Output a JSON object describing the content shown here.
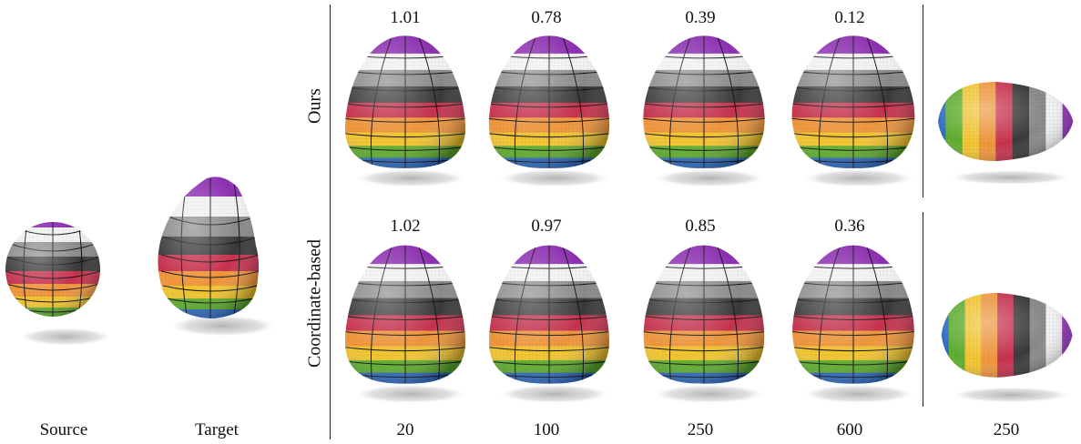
{
  "figure": {
    "row_labels": {
      "top": "Ours",
      "bottom": "Coordinate-based"
    },
    "top_errors": [
      "1.01",
      "0.78",
      "0.39",
      "0.12"
    ],
    "bottom_errors": [
      "1.02",
      "0.97",
      "0.85",
      "0.36"
    ],
    "bottom_labels": {
      "source": "Source",
      "target": "Target",
      "steps": [
        "20",
        "100",
        "250",
        "600"
      ],
      "extra": "250"
    }
  },
  "palette": {
    "purple": "#8e2fb4",
    "white": "#f2f2f2",
    "gray": "#8a8a8a",
    "dark": "#3a3a3a",
    "red": "#c8324e",
    "orange": "#f0963c",
    "yellow": "#f2c530",
    "green": "#5fae2e",
    "blue": "#2f6cc4"
  }
}
